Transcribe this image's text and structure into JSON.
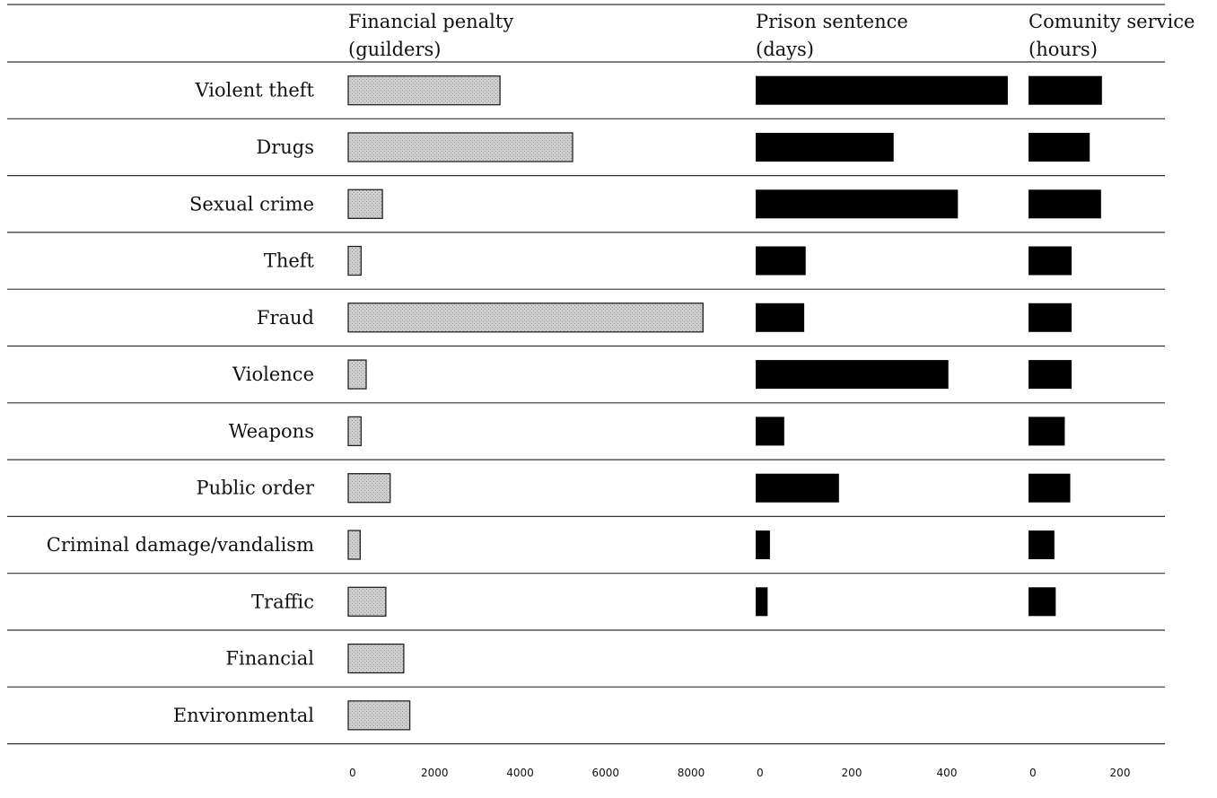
{
  "chart_data": {
    "type": "bar",
    "categories": [
      "Violent theft",
      "Drugs",
      "Sexual crime",
      "Theft",
      "Fraud",
      "Violence",
      "Weapons",
      "Public order",
      "Criminal damage/vandalism",
      "Traffic",
      "Financial",
      "Environmental"
    ],
    "panels": [
      {
        "name_line1": "Financial penalty",
        "name_line2": "(guilders)",
        "unit": "guilders",
        "fill": "#c4c4c4",
        "xlim": [
          0,
          8000
        ],
        "ticks": [
          "0",
          "2000",
          "4000",
          "6000",
          "8000"
        ],
        "tick_values": [
          0,
          2000,
          4000,
          6000,
          8000
        ],
        "values": [
          3550,
          5250,
          800,
          300,
          8300,
          420,
          300,
          980,
          280,
          880,
          1300,
          1440
        ]
      },
      {
        "name_line1": "Prison sentence",
        "name_line2": "(days)",
        "unit": "days",
        "fill": "#000000",
        "xlim": [
          0,
          400
        ],
        "ticks": [
          "0",
          "200",
          "400"
        ],
        "tick_values": [
          0,
          200,
          400
        ],
        "values": [
          530,
          290,
          425,
          105,
          102,
          405,
          60,
          175,
          30,
          25,
          null,
          null
        ]
      },
      {
        "name_line1": "Comunity service",
        "name_line2": "(hours)",
        "unit": "hours",
        "fill": "#000000",
        "xlim": [
          0,
          200
        ],
        "ticks": [
          "0",
          "200"
        ],
        "tick_values": [
          0,
          200
        ],
        "values": [
          162,
          135,
          160,
          95,
          95,
          95,
          80,
          92,
          57,
          60,
          null,
          null
        ]
      }
    ],
    "grid": "horizontal row separators"
  }
}
